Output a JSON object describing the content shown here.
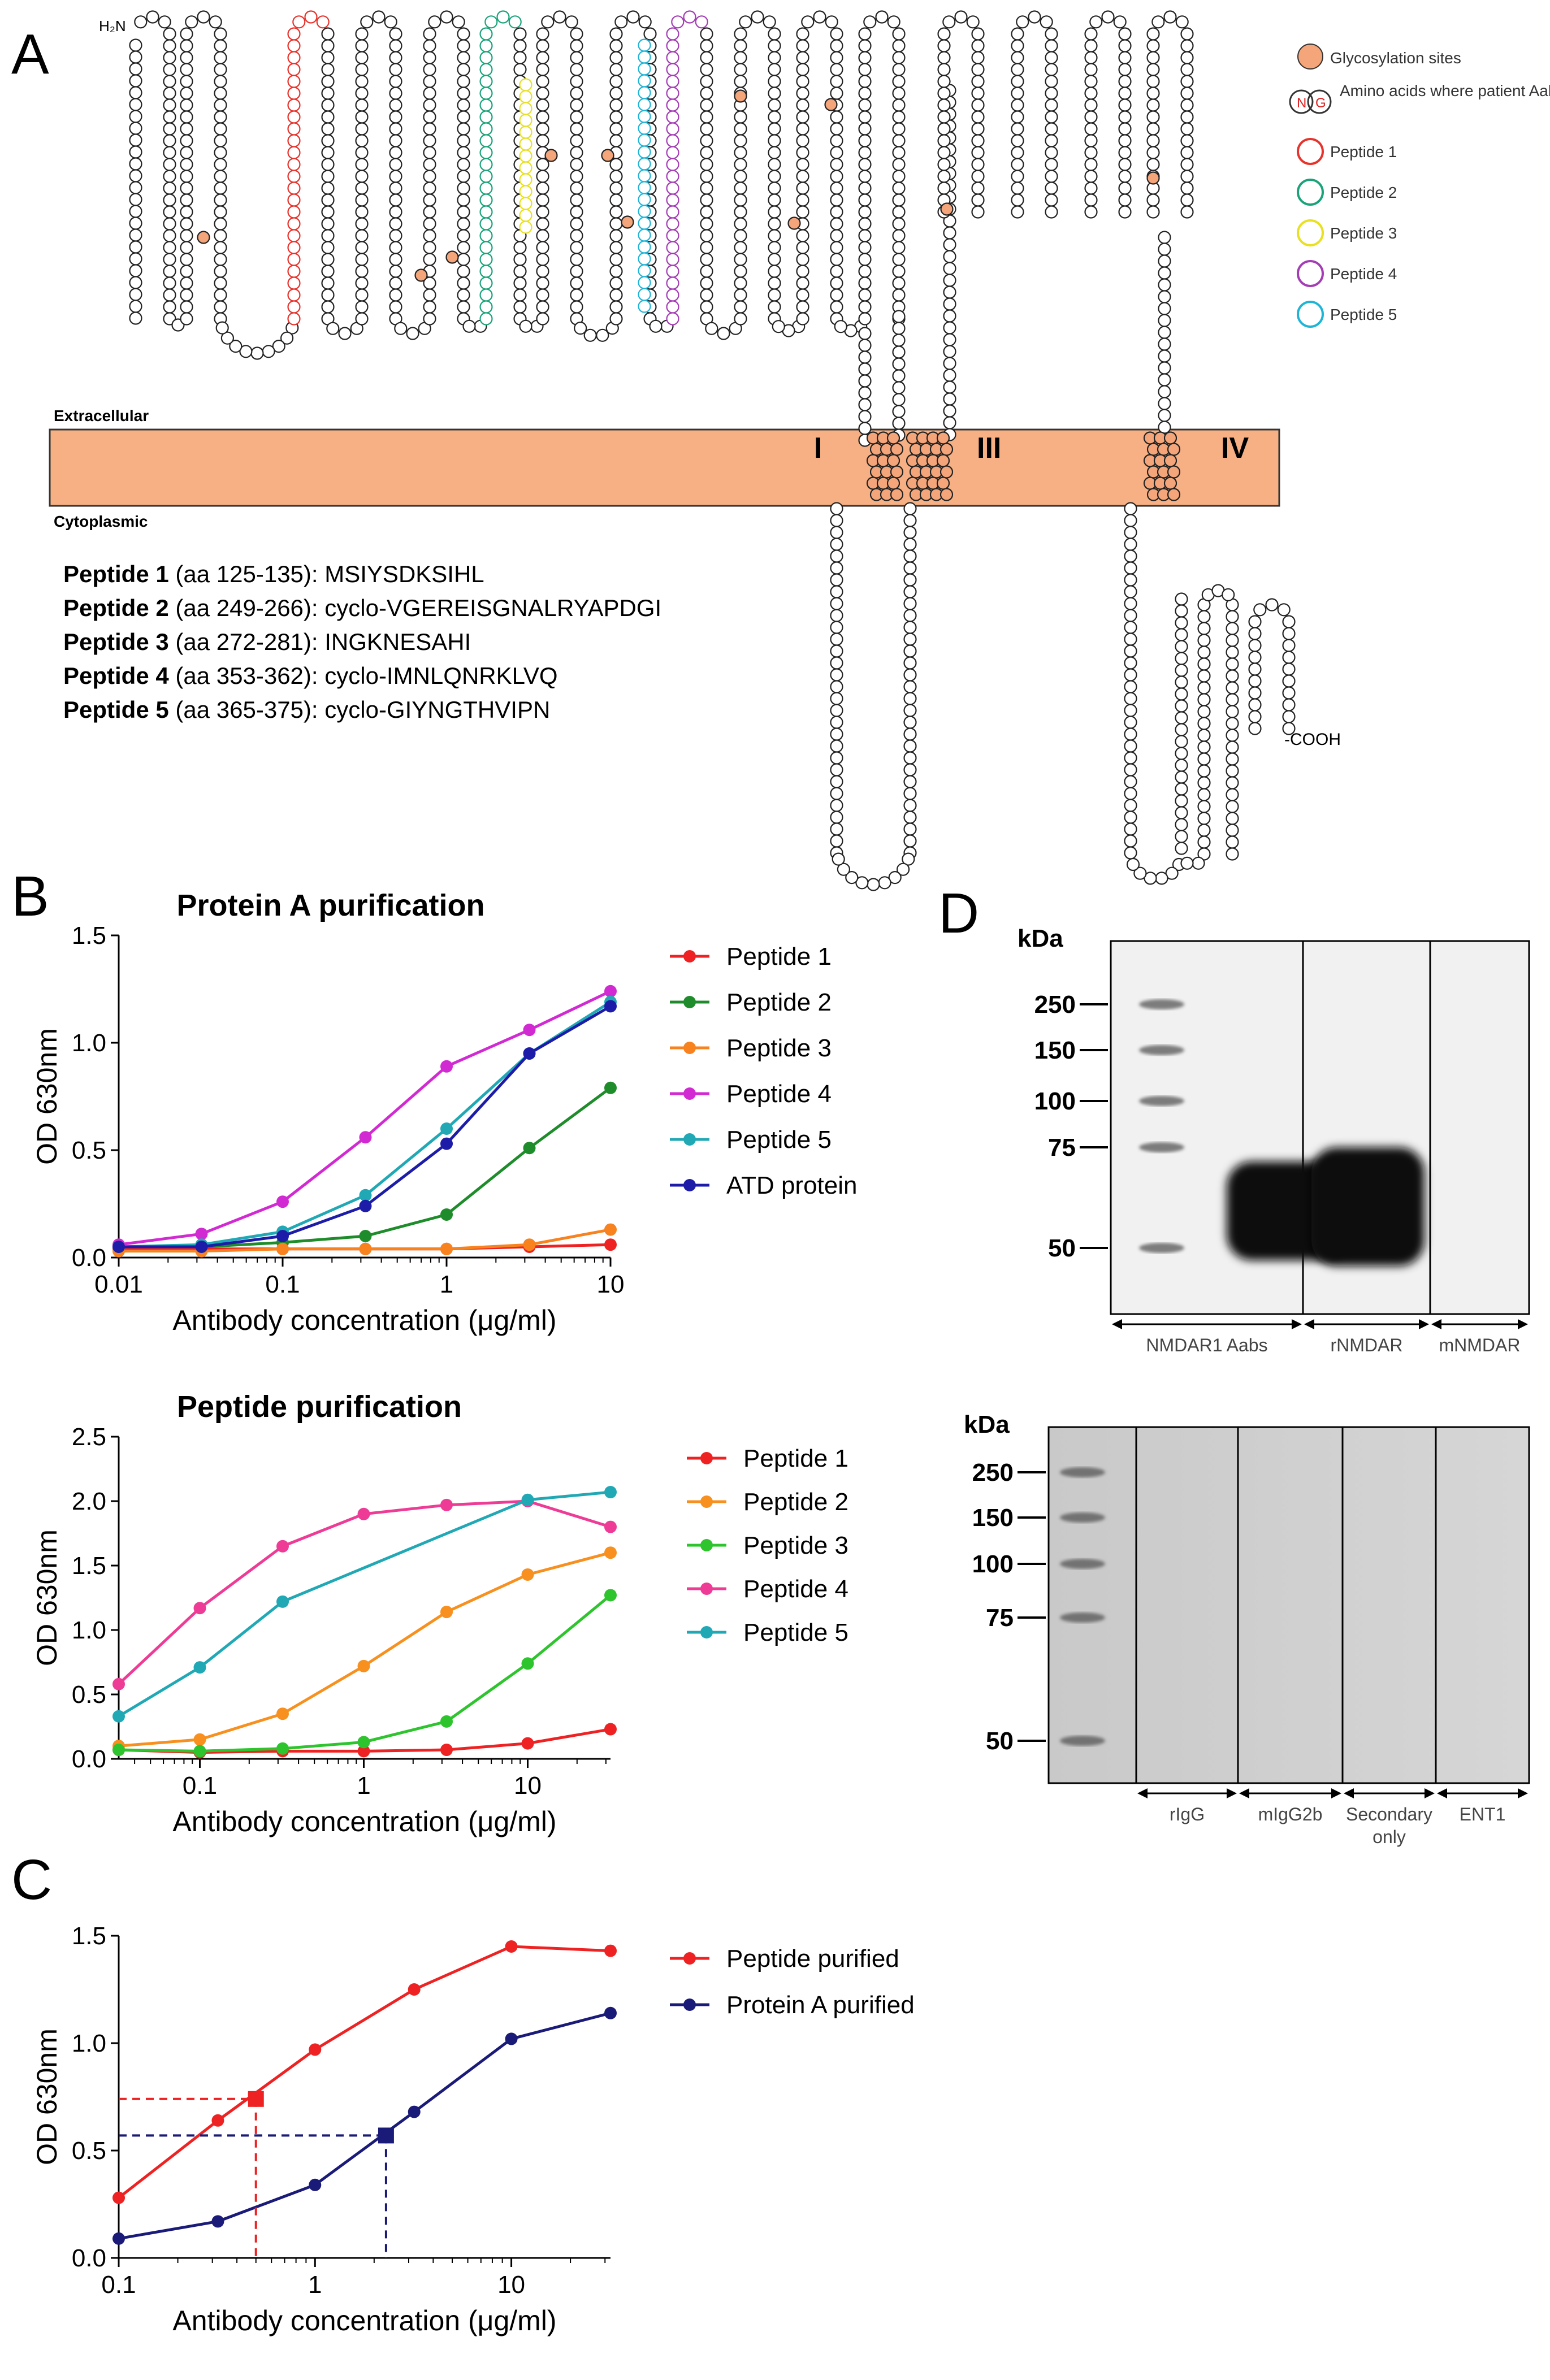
{
  "panelA": {
    "letter": "A",
    "nterm": "H₂N",
    "cterm": "-COOH",
    "extracellular": "Extracellular",
    "cytoplasmic": "Cytoplasmic",
    "tm_labels": [
      "I",
      "III",
      "IV"
    ],
    "legend": [
      {
        "label": "Glycosylation sites",
        "color": "#f4a57a",
        "kind": "filled"
      },
      {
        "label": "Amino acids where patient Aabs bind",
        "color": "#000000",
        "kind": "ng"
      },
      {
        "label": "Peptide 1",
        "color": "#e8322b",
        "kind": "ring"
      },
      {
        "label": "Peptide 2",
        "color": "#1aa37a",
        "kind": "ring"
      },
      {
        "label": "Peptide 3",
        "color": "#e8e020",
        "kind": "ring"
      },
      {
        "label": "Peptide 4",
        "color": "#a43cb5",
        "kind": "ring"
      },
      {
        "label": "Peptide 5",
        "color": "#1fb4d6",
        "kind": "ring"
      }
    ],
    "ng_letters": [
      "N",
      "G"
    ],
    "membrane_color": "#f7b083",
    "peptides": [
      {
        "name": "Peptide 1",
        "range": "(aa 125-135):",
        "seq": "MSIYSDKSIHL"
      },
      {
        "name": "Peptide 2",
        "range": "(aa 249-266):",
        "seq": "cyclo-VGEREISGNALRYAPDGI"
      },
      {
        "name": "Peptide 3",
        "range": "(aa 272-281):",
        "seq": "INGKNESAHI"
      },
      {
        "name": "Peptide 4",
        "range": "(aa 353-362):",
        "seq": "cyclo-IMNLQNRKLVQ"
      },
      {
        "name": "Peptide 5",
        "range": "(aa 365-375):",
        "seq": "cyclo-GIYNGTHVIPN"
      }
    ]
  },
  "panelB": {
    "letter": "B"
  },
  "panelC": {
    "letter": "C"
  },
  "panelD": {
    "letter": "D"
  },
  "chart_data": [
    {
      "id": "b1",
      "type": "line",
      "title": "Protein A purification",
      "xlabel": "Antibody concentration (μg/ml)",
      "ylabel": "OD 630nm",
      "xscale": "log",
      "xlim": [
        0.01,
        10
      ],
      "ylim": [
        0,
        1.5
      ],
      "xticks": [
        0.01,
        0.1,
        1,
        10
      ],
      "xtick_labels": [
        "0.01",
        "0.1",
        "1",
        "10"
      ],
      "yticks": [
        0,
        0.5,
        1.0,
        1.5
      ],
      "ytick_labels": [
        "0.0",
        "0.5",
        "1.0",
        "1.5"
      ],
      "x": [
        0.01,
        0.032,
        0.1,
        0.32,
        1,
        3.2,
        10
      ],
      "series": [
        {
          "name": "Peptide 1",
          "color": "#ee2222",
          "values": [
            0.04,
            0.04,
            0.04,
            0.04,
            0.04,
            0.05,
            0.06
          ]
        },
        {
          "name": "Peptide 2",
          "color": "#1e8c2a",
          "values": [
            0.05,
            0.05,
            0.07,
            0.1,
            0.2,
            0.51,
            0.79
          ]
        },
        {
          "name": "Peptide 3",
          "color": "#f7821e",
          "values": [
            0.03,
            0.03,
            0.04,
            0.04,
            0.04,
            0.06,
            0.13
          ]
        },
        {
          "name": "Peptide 4",
          "color": "#d22ad2",
          "values": [
            0.06,
            0.11,
            0.26,
            0.56,
            0.89,
            1.06,
            1.24
          ]
        },
        {
          "name": "Peptide 5",
          "color": "#21a8b5",
          "values": [
            0.05,
            0.06,
            0.12,
            0.29,
            0.6,
            0.95,
            1.19
          ]
        },
        {
          "name": "ATD protein",
          "color": "#1c1ca8",
          "values": [
            0.05,
            0.05,
            0.1,
            0.24,
            0.53,
            0.95,
            1.17
          ]
        }
      ]
    },
    {
      "id": "b2",
      "type": "line",
      "title": "Peptide purification",
      "xlabel": "Antibody concentration (μg/ml)",
      "ylabel": "OD 630nm",
      "xscale": "log",
      "xlim": [
        0.032,
        32
      ],
      "ylim": [
        0,
        2.5
      ],
      "xticks": [
        0.1,
        1,
        10
      ],
      "xtick_labels": [
        "0.1",
        "1",
        "10"
      ],
      "yticks": [
        0,
        0.5,
        1.0,
        1.5,
        2.0,
        2.5
      ],
      "ytick_labels": [
        "0.0",
        "0.5",
        "1.0",
        "1.5",
        "2.0",
        "2.5"
      ],
      "x": [
        0.032,
        0.1,
        0.32,
        1,
        3.2,
        10,
        32
      ],
      "series": [
        {
          "name": "Peptide 1",
          "color": "#ee2222",
          "values": [
            0.07,
            0.05,
            0.06,
            0.06,
            0.07,
            0.12,
            0.23
          ]
        },
        {
          "name": "Peptide 2",
          "color": "#f7901e",
          "values": [
            0.1,
            0.15,
            0.35,
            0.72,
            1.14,
            1.43,
            1.6
          ]
        },
        {
          "name": "Peptide 3",
          "color": "#2ec42e",
          "values": [
            0.07,
            0.06,
            0.08,
            0.13,
            0.29,
            0.74,
            1.27
          ]
        },
        {
          "name": "Peptide 4",
          "color": "#ee3c96",
          "values": [
            0.58,
            1.17,
            1.65,
            1.9,
            1.97,
            2.0,
            1.8
          ]
        },
        {
          "name": "Peptide 5",
          "color": "#21a8b5",
          "values": [
            0.33,
            0.71,
            1.22,
            null,
            null,
            2.01,
            2.07
          ]
        }
      ]
    },
    {
      "id": "c",
      "type": "line",
      "title": "",
      "xlabel": "Antibody concentration (μg/ml)",
      "ylabel": "OD 630nm",
      "xscale": "log",
      "xlim": [
        0.1,
        32
      ],
      "ylim": [
        0,
        1.5
      ],
      "xticks": [
        0.1,
        1,
        10
      ],
      "xtick_labels": [
        "0.1",
        "1",
        "10"
      ],
      "yticks": [
        0,
        0.5,
        1.0,
        1.5
      ],
      "ytick_labels": [
        "0.0",
        "0.5",
        "1.0",
        "1.5"
      ],
      "x": [
        0.1,
        0.32,
        1,
        3.2,
        10,
        32
      ],
      "series": [
        {
          "name": "Peptide purified",
          "color": "#ee2222",
          "values": [
            0.28,
            0.64,
            0.97,
            1.25,
            1.45,
            1.43
          ]
        },
        {
          "name": "Protein A purified",
          "color": "#1a1a78",
          "values": [
            0.09,
            0.17,
            0.34,
            0.68,
            1.02,
            1.14
          ]
        }
      ],
      "markers": [
        {
          "series": "Peptide purified",
          "x": 0.5,
          "y": 0.74
        },
        {
          "series": "Protein A purified",
          "x": 2.3,
          "y": 0.57
        }
      ]
    }
  ],
  "western": {
    "top": {
      "kda_title": "kDa",
      "markers": [
        "250",
        "150",
        "100",
        "75",
        "50"
      ],
      "lanes": [
        "NMDAR1 Aabs",
        "rNMDAR",
        "mNMDAR"
      ]
    },
    "bottom": {
      "kda_title": "kDa",
      "markers": [
        "250",
        "150",
        "100",
        "75",
        "50"
      ],
      "lanes": [
        "rIgG",
        "mIgG2b",
        "Secondary only",
        "ENT1"
      ]
    }
  }
}
